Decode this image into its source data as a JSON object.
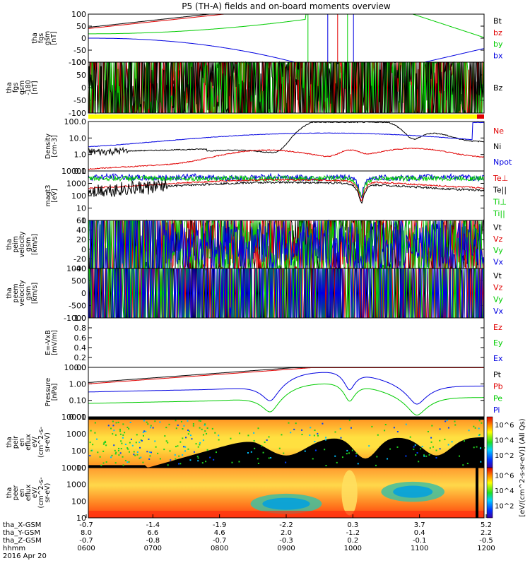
{
  "title": "P5 (TH-A) fields and on-board moments overview",
  "colors": {
    "black": "#000000",
    "red": "#e00000",
    "green": "#00cc00",
    "blue": "#0000e0",
    "yellow": "#ffff00"
  },
  "panels": [
    {
      "id": "fgs",
      "ylabel_lines": [
        "tha",
        "fgs",
        "gsm",
        "[nT]"
      ],
      "ticks": [
        "100",
        "50",
        "0",
        "-50",
        "-100"
      ],
      "legend": [
        {
          "t": "Bt",
          "c": "black"
        },
        {
          "t": "bz",
          "c": "red"
        },
        {
          "t": "by",
          "c": "green"
        },
        {
          "t": "bx",
          "c": "blue"
        }
      ]
    },
    {
      "id": "fgs_dsl",
      "ylabel_lines": [
        "tha",
        "fgs",
        "gsm",
        "-180",
        "[nT]"
      ],
      "ticks": [
        "100",
        "50",
        "0",
        "-50",
        "-100"
      ],
      "legend": [
        {
          "t": "Bz",
          "c": "black"
        }
      ]
    },
    {
      "id": "density",
      "ylabel_lines": [
        "Density",
        "[cm-3]"
      ],
      "ticks": [
        "100.0",
        "10.0",
        "1.0",
        "0.1"
      ],
      "legend": [
        {
          "t": "Ne",
          "c": "red"
        },
        {
          "t": "Ni",
          "c": "black"
        },
        {
          "t": "Npot",
          "c": "blue"
        }
      ]
    },
    {
      "id": "temp",
      "ylabel_lines": [
        "magt3",
        "[eV]"
      ],
      "ticks": [
        "10000",
        "1000",
        "100",
        "10",
        "1"
      ],
      "legend": [
        {
          "t": "Te⊥",
          "c": "red"
        },
        {
          "t": "Te||",
          "c": "black"
        },
        {
          "t": "Ti⊥",
          "c": "green"
        },
        {
          "t": "Ti||",
          "c": "green"
        }
      ]
    },
    {
      "id": "peim_vel",
      "ylabel_lines": [
        "tha",
        "peim",
        "velocity",
        "gsm",
        "[km/s]"
      ],
      "ticks": [
        "60",
        "40",
        "20",
        "0",
        "-20",
        "-40"
      ],
      "legend": [
        {
          "t": "Vt",
          "c": "black"
        },
        {
          "t": "Vz",
          "c": "red"
        },
        {
          "t": "Vy",
          "c": "green"
        },
        {
          "t": "Vx",
          "c": "blue"
        }
      ]
    },
    {
      "id": "peem_vel",
      "ylabel_lines": [
        "tha",
        "peem",
        "velocity",
        "gsm",
        "[km/s]"
      ],
      "ticks": [
        "1000",
        "500",
        "0",
        "-500",
        "-1000"
      ],
      "legend": [
        {
          "t": "Vt",
          "c": "black"
        },
        {
          "t": "Vz",
          "c": "red"
        },
        {
          "t": "Vy",
          "c": "green"
        },
        {
          "t": "Vx",
          "c": "blue"
        }
      ]
    },
    {
      "id": "efield",
      "ylabel_lines": [
        "E=-VxB",
        "[mV/m]"
      ],
      "ticks": [
        "1.0",
        "0.8",
        "0.6",
        "0.4",
        "0.2",
        "0.0"
      ],
      "legend": [
        {
          "t": "Ez",
          "c": "red"
        },
        {
          "t": "Ey",
          "c": "green"
        },
        {
          "t": "Ex",
          "c": "blue"
        }
      ]
    },
    {
      "id": "pressure",
      "ylabel_lines": [
        "Pressure",
        "[nPa]"
      ],
      "ticks": [
        "10.00",
        "1.00",
        "0.10",
        "0.01"
      ],
      "legend": [
        {
          "t": "Pt",
          "c": "black"
        },
        {
          "t": "Pb",
          "c": "red"
        },
        {
          "t": "Pe",
          "c": "green"
        },
        {
          "t": "Pi",
          "c": "blue"
        }
      ]
    },
    {
      "id": "peir",
      "ylabel_lines": [
        "tha",
        "peir",
        "en",
        "eflux",
        "eV/",
        "(cm^2-s-",
        "sr-eV)"
      ],
      "ticks": [
        "10000",
        "1000",
        "100",
        "10"
      ]
    },
    {
      "id": "peer",
      "ylabel_lines": [
        "tha",
        "peer",
        "en",
        "eflux",
        "eV/",
        "(cm^2-s-",
        "sr-eV)"
      ],
      "ticks": [
        "10000",
        "1000",
        "100",
        "10"
      ]
    }
  ],
  "colorbar": {
    "label": "[eV/(cm^2-s-sr-eV)] (All Qs)",
    "ticks": [
      "10^6",
      "10^4",
      "10^2"
    ]
  },
  "xaxis": {
    "rows": [
      {
        "label": "tha_X-GSM",
        "values": [
          "-0.7",
          "-1.4",
          "-1.9",
          "-2.2",
          "0.3",
          "3.7",
          "5.2"
        ]
      },
      {
        "label": "tha_Y-GSM",
        "values": [
          "8.0",
          "6.6",
          "4.6",
          "2.0",
          "-1.2",
          "0.4",
          "2.2"
        ]
      },
      {
        "label": "tha_Z-GSM",
        "values": [
          "-0.7",
          "-0.8",
          "-0.7",
          "-0.3",
          "0.2",
          "-0.1",
          "-0.5"
        ]
      },
      {
        "label": "hhmm",
        "values": [
          "0600",
          "0700",
          "0800",
          "0900",
          "1000",
          "1100",
          "1200"
        ]
      }
    ],
    "date": "2016 Apr 20"
  },
  "chart_data": [
    {
      "type": "line",
      "title": "P5 (TH-A) fields and on-board moments overview",
      "ylabel": "tha fgs gsm [nT]",
      "ylim": [
        -100,
        100
      ],
      "x": [
        "0600",
        "0700",
        "0800",
        "0900",
        "1000",
        "1100",
        "1200"
      ],
      "series": [
        {
          "name": "Bt",
          "values": [
            45,
            75,
            100,
            100,
            100,
            100,
            100
          ]
        },
        {
          "name": "bz",
          "values": [
            40,
            70,
            95,
            100,
            100,
            100,
            100
          ]
        },
        {
          "name": "by",
          "values": [
            20,
            35,
            65,
            100,
            100,
            60,
            5
          ]
        },
        {
          "name": "bx",
          "values": [
            0,
            -5,
            -40,
            -100,
            -100,
            -100,
            -45
          ]
        }
      ]
    },
    {
      "type": "line",
      "ylabel": "Density [cm-3]",
      "ylim": [
        0.1,
        100
      ],
      "x": [
        "0600",
        "0700",
        "0800",
        "0900",
        "1000",
        "1100",
        "1200"
      ],
      "series": [
        {
          "name": "Ni",
          "values": [
            0.8,
            1.5,
            8,
            1.5,
            25,
            1.5,
            40
          ]
        },
        {
          "name": "Ne",
          "values": [
            0.15,
            0.3,
            1.0,
            0.2,
            1.5,
            0.2,
            0.5
          ]
        },
        {
          "name": "Npot",
          "values": [
            2,
            5,
            12,
            20,
            20,
            15,
            5
          ]
        }
      ]
    },
    {
      "type": "line",
      "ylabel": "Pressure [nPa]",
      "ylim": [
        0.01,
        10
      ],
      "x": [
        "0600",
        "0700",
        "0800",
        "0900",
        "1000",
        "1100",
        "1200"
      ],
      "series": [
        {
          "name": "Pi",
          "values": [
            0.6,
            1.0,
            3.0,
            0.07,
            0.25,
            0.06,
            0.6
          ]
        },
        {
          "name": "Pe",
          "values": [
            0.1,
            0.2,
            0.6,
            0.015,
            0.06,
            0.015,
            0.1
          ]
        },
        {
          "name": "Pt",
          "values": [
            1.2,
            2.5,
            10,
            10,
            10,
            10,
            10
          ]
        }
      ]
    }
  ]
}
